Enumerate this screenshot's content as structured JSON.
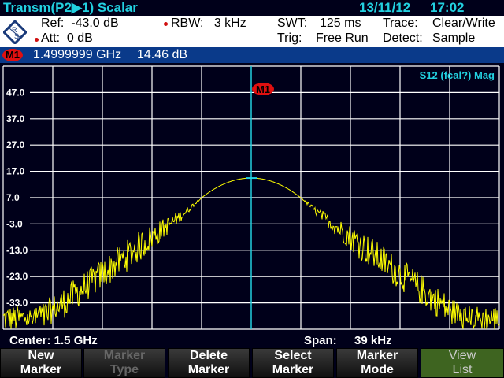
{
  "header": {
    "title": "Transm(P2▶1) Scalar",
    "date": "13/11/12",
    "time": "17:02"
  },
  "info": {
    "ref": "Ref:  -43.0 dB",
    "att": "Att:  0 dB",
    "rbw": "RBW:   3 kHz",
    "swt_label": "SWT:",
    "swt_value": "125 ms",
    "trig_label": "Trig:",
    "trig_value": "Free Run",
    "trace_label": "Trace:",
    "trace_value": "Clear/Write",
    "detect_label": "Detect:",
    "detect_value": "Sample"
  },
  "marker": {
    "label": "M1",
    "frequency": "1.4999999 GHz",
    "level": "14.46 dB"
  },
  "plot": {
    "trace_name": "S12 (fcal?) Mag",
    "y_ticks": [
      "47.0",
      "37.0",
      "27.0",
      "17.0",
      "7.0",
      "-3.0",
      "-13.0",
      "-23.0",
      "-33.0"
    ],
    "y_range_db": [
      -43,
      57
    ],
    "peak_db": 14.46,
    "noise_floor_db": -39,
    "trace_color": "#ffff00",
    "marker_color": "#22d0e0"
  },
  "footer": {
    "center": "Center: 1.5 GHz",
    "span_label": "Span:",
    "span_value": "39 kHz"
  },
  "softkeys": [
    {
      "l1": "New",
      "l2": "Marker",
      "state": "enabled"
    },
    {
      "l1": "Marker",
      "l2": "Type",
      "state": "disabled"
    },
    {
      "l1": "Delete",
      "l2": "Marker",
      "state": "enabled"
    },
    {
      "l1": "Select",
      "l2": "Marker",
      "state": "enabled"
    },
    {
      "l1": "Marker",
      "l2": "Mode",
      "state": "enabled"
    },
    {
      "l1": "View",
      "l2": "List",
      "state": "active"
    }
  ]
}
